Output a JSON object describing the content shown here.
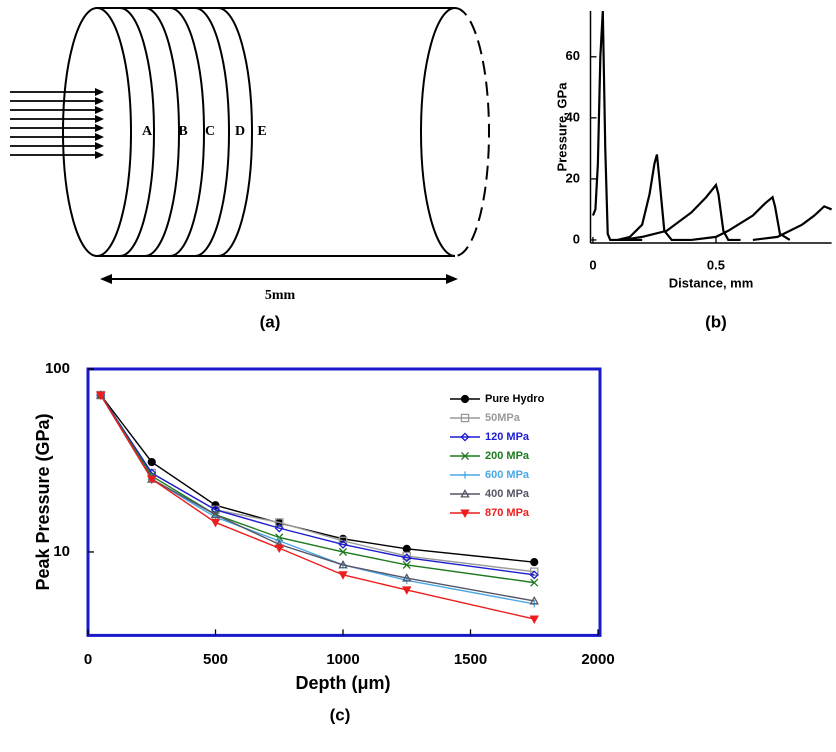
{
  "diagram": {
    "disc_labels": [
      "A",
      "B",
      "C",
      "D",
      "E"
    ],
    "length_label": "5mm",
    "caption": "(a)"
  },
  "chart_data": [
    {
      "type": "line",
      "caption": "(b)",
      "xlabel": "Distance, mm",
      "ylabel": "Pressure, GPa",
      "xlim": [
        -0.01,
        0.97
      ],
      "ylim": [
        -1,
        75
      ],
      "xticks": [
        0,
        0.5
      ],
      "yticks": [
        0,
        20,
        40,
        60
      ],
      "series": [
        {
          "color": "#000000",
          "x": [
            0,
            0.01,
            0.02,
            0.03,
            0.04,
            0.05,
            0.06,
            0.07,
            0.1,
            0.2
          ],
          "values": [
            8,
            10,
            25,
            60,
            75,
            30,
            2,
            0,
            0,
            0
          ]
        },
        {
          "color": "#000000",
          "x": [
            0.1,
            0.15,
            0.2,
            0.23,
            0.25,
            0.26,
            0.27,
            0.29,
            0.32,
            0.4
          ],
          "values": [
            0,
            1,
            5,
            15,
            25,
            28,
            20,
            3,
            0,
            0
          ]
        },
        {
          "color": "#000000",
          "x": [
            0.12,
            0.2,
            0.3,
            0.4,
            0.46,
            0.5,
            0.51,
            0.53,
            0.55,
            0.6
          ],
          "values": [
            0,
            1,
            3,
            9,
            14,
            18,
            15,
            3,
            0,
            0
          ]
        },
        {
          "color": "#000000",
          "x": [
            0.4,
            0.5,
            0.55,
            0.65,
            0.7,
            0.73,
            0.74,
            0.76,
            0.8
          ],
          "values": [
            0,
            1,
            3,
            8,
            12,
            14,
            11,
            2,
            0
          ]
        },
        {
          "color": "#000000",
          "x": [
            0.65,
            0.75,
            0.85,
            0.9,
            0.94,
            0.97
          ],
          "values": [
            0,
            1,
            5,
            8,
            11,
            10
          ]
        }
      ]
    },
    {
      "type": "line",
      "caption": "(c)",
      "xlabel": "Depth (μm)",
      "ylabel": "Peak Pressure (GPa)",
      "xlim": [
        0,
        2000
      ],
      "ylim": [
        3.5,
        100
      ],
      "log_y": true,
      "frame_color": "#1a1acc",
      "legend": "upper right",
      "xticks": [
        0,
        500,
        1000,
        1500,
        2000
      ],
      "yticks": [
        10,
        100
      ],
      "x": [
        50,
        250,
        500,
        750,
        1000,
        1250,
        1750
      ],
      "series": [
        {
          "name": "Pure Hydro",
          "color": "#000000",
          "marker": "circle",
          "values": [
            72,
            31,
            18,
            14.4,
            11.8,
            10.4,
            8.8
          ]
        },
        {
          "name": "50MPa",
          "color": "#9a9a9a",
          "marker": "square",
          "values": [
            72,
            27,
            17,
            14.5,
            11.5,
            9.5,
            7.8
          ]
        },
        {
          "name": "120 MPa",
          "color": "#1c1cd0",
          "marker": "diamond",
          "values": [
            72,
            27,
            17,
            13.5,
            11,
            9.3,
            7.5
          ]
        },
        {
          "name": "200 MPa",
          "color": "#1e7a1e",
          "marker": "x",
          "values": [
            72,
            26,
            16,
            12,
            10,
            8.5,
            6.8
          ]
        },
        {
          "name": "600 MPa",
          "color": "#4aa8e6",
          "marker": "plus",
          "values": [
            72,
            25,
            15.5,
            11.5,
            8.5,
            7,
            5.2
          ]
        },
        {
          "name": "400 MPa",
          "color": "#555566",
          "marker": "triangle",
          "values": [
            72,
            25,
            16,
            11,
            8.5,
            7.2,
            5.4
          ]
        },
        {
          "name": "870 MPa",
          "color": "#ee1c1c",
          "marker": "triangle-down",
          "values": [
            72,
            25,
            14.5,
            10.5,
            7.5,
            6.2,
            4.3
          ]
        }
      ]
    }
  ]
}
